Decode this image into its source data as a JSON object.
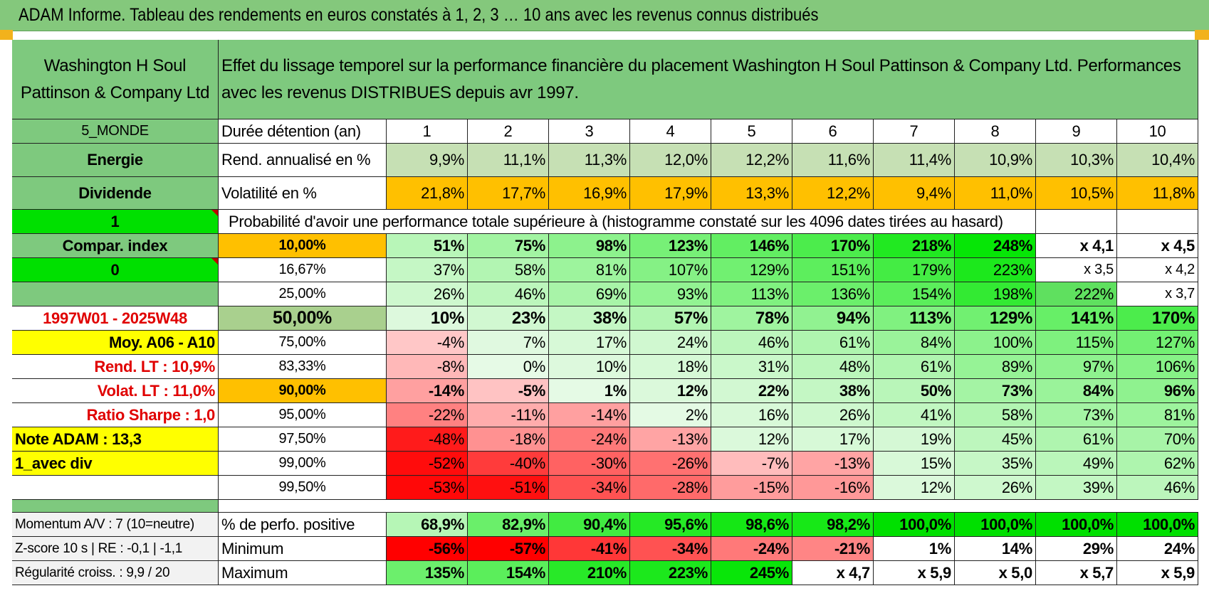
{
  "title": "ADAM Informe. Tableau des rendements en euros constatés à 1, 2, 3 … 10 ans avec les revenus connus distribués",
  "company": "Washington H Soul Pattinson & Company Ltd",
  "description": "Effet du lissage temporel sur la performance financière du placement Washington H Soul Pattinson & Company Ltd. Performances avec les revenus DISTRIBUES depuis avr 1997.",
  "side": {
    "region": "5_MONDE",
    "sector": "Energie",
    "type": "Dividende",
    "flag1": "1",
    "compar": "Compar. index",
    "flag2": "0",
    "period": "1997W01 - 2025W48",
    "moy": "Moy. A06 - A10",
    "rend_lt": "Rend. LT :    10,9%",
    "volat_lt": "Volat. LT :    11,0%",
    "sharpe": "Ratio Sharpe :     1,0",
    "note": "Note ADAM : 13,3",
    "mode": "1_avec div",
    "momentum": "Momentum A/V : 7 (10=neutre)",
    "zscore": "Z-score 10 s | RE : -0,1 | -1,1",
    "regularite": "Régularité croiss. : 9,9 / 20"
  },
  "labels": {
    "duree": "Durée détention (an)",
    "rend": "Rend. annualisé en %",
    "volat": "Volatilité en %",
    "proba": "Probabilité d'avoir une performance totale supérieure à (histogramme constaté sur les 4096 dates tirées au hasard)",
    "positive": "% de perfo. positive",
    "minimum": "Minimum",
    "maximum": "Maximum"
  },
  "years": [
    "1",
    "2",
    "3",
    "4",
    "5",
    "6",
    "7",
    "8",
    "9",
    "10"
  ],
  "rend": [
    "9,9%",
    "11,1%",
    "11,3%",
    "12,0%",
    "12,2%",
    "11,6%",
    "11,4%",
    "10,9%",
    "10,3%",
    "10,4%"
  ],
  "volat": [
    "21,8%",
    "17,7%",
    "16,9%",
    "17,9%",
    "13,3%",
    "12,2%",
    "9,4%",
    "11,0%",
    "10,5%",
    "11,8%"
  ],
  "rows": [
    {
      "p": "10,00%",
      "v": [
        "51%",
        "75%",
        "98%",
        "123%",
        "146%",
        "170%",
        "218%",
        "248%",
        "x 4,1",
        "x 4,5"
      ]
    },
    {
      "p": "16,67%",
      "v": [
        "37%",
        "58%",
        "81%",
        "107%",
        "129%",
        "151%",
        "179%",
        "223%",
        "x 3,5",
        "x 4,2"
      ]
    },
    {
      "p": "25,00%",
      "v": [
        "26%",
        "46%",
        "69%",
        "93%",
        "113%",
        "136%",
        "154%",
        "198%",
        "222%",
        "x 3,7"
      ]
    },
    {
      "p": "50,00%",
      "v": [
        "10%",
        "23%",
        "38%",
        "57%",
        "78%",
        "94%",
        "113%",
        "129%",
        "141%",
        "170%"
      ]
    },
    {
      "p": "75,00%",
      "v": [
        "-4%",
        "7%",
        "17%",
        "24%",
        "46%",
        "61%",
        "84%",
        "100%",
        "115%",
        "127%"
      ]
    },
    {
      "p": "83,33%",
      "v": [
        "-8%",
        "0%",
        "10%",
        "18%",
        "31%",
        "48%",
        "61%",
        "89%",
        "97%",
        "106%"
      ]
    },
    {
      "p": "90,00%",
      "v": [
        "-14%",
        "-5%",
        "1%",
        "12%",
        "22%",
        "38%",
        "50%",
        "73%",
        "84%",
        "96%"
      ]
    },
    {
      "p": "95,00%",
      "v": [
        "-22%",
        "-11%",
        "-14%",
        "2%",
        "16%",
        "26%",
        "41%",
        "58%",
        "73%",
        "81%"
      ]
    },
    {
      "p": "97,50%",
      "v": [
        "-48%",
        "-18%",
        "-24%",
        "-13%",
        "12%",
        "17%",
        "19%",
        "45%",
        "61%",
        "70%"
      ]
    },
    {
      "p": "99,00%",
      "v": [
        "-52%",
        "-40%",
        "-30%",
        "-26%",
        "-7%",
        "-13%",
        "15%",
        "35%",
        "49%",
        "62%"
      ]
    },
    {
      "p": "99,50%",
      "v": [
        "-53%",
        "-51%",
        "-34%",
        "-28%",
        "-15%",
        "-16%",
        "12%",
        "26%",
        "39%",
        "46%"
      ]
    }
  ],
  "positive": [
    "68,9%",
    "82,9%",
    "90,4%",
    "95,6%",
    "98,6%",
    "98,2%",
    "100,0%",
    "100,0%",
    "100,0%",
    "100,0%"
  ],
  "minimum": [
    "-56%",
    "-57%",
    "-41%",
    "-34%",
    "-24%",
    "-21%",
    "1%",
    "14%",
    "29%",
    "24%"
  ],
  "maximum": [
    "135%",
    "154%",
    "210%",
    "223%",
    "245%",
    "x 4,7",
    "x 5,9",
    "x 5,0",
    "x 5,7",
    "x 5,9"
  ],
  "colors": {
    "header_green": "#7ec97e",
    "light_green": "#c6e0b4",
    "orange": "#ffc000",
    "yellow": "#ffff00",
    "bright_green": "#00e000",
    "label_red": "#e00000"
  }
}
